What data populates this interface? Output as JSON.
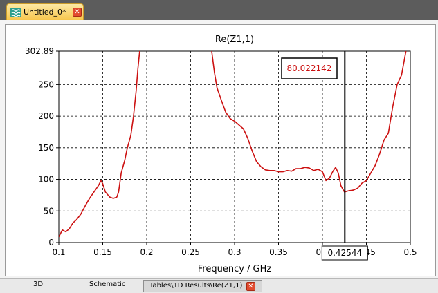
{
  "document_tab": {
    "title": "Untitled_0*",
    "icon": "wave-icon",
    "close_icon": "close-icon"
  },
  "bottom_tabs": [
    {
      "label": "3D"
    },
    {
      "label": "Schematic"
    },
    {
      "label": "Tables\\1D Results\\Re(Z1,1)",
      "active": true
    }
  ],
  "colors": {
    "curve": "#cc1111",
    "marker_value": "#cc1111",
    "grid": "#000000"
  },
  "marker": {
    "value_label": "80.022142",
    "x_label": "0.42544",
    "x": 0.42544,
    "y": 80.022142
  },
  "chart_data": {
    "type": "line",
    "title": "Re(Z1,1)",
    "xlabel": "Frequency / GHz",
    "ylabel": "",
    "xlim": [
      0.1,
      0.5
    ],
    "ylim": [
      0,
      302.89
    ],
    "xticks": [
      "0.1",
      "0.15",
      "0.2",
      "0.25",
      "0.3",
      "0.35",
      "0.4",
      "0.45",
      "0.5"
    ],
    "yticks": [
      "0",
      "50",
      "100",
      "150",
      "200",
      "250",
      "302.89"
    ],
    "grid": true,
    "series": [
      {
        "segments": [
          [
            [
              0.1,
              9
            ],
            [
              0.104,
              20
            ],
            [
              0.108,
              17
            ],
            [
              0.112,
              22
            ],
            [
              0.116,
              31
            ],
            [
              0.12,
              36
            ],
            [
              0.125,
              45
            ],
            [
              0.13,
              58
            ],
            [
              0.135,
              70
            ],
            [
              0.14,
              80
            ],
            [
              0.145,
              90
            ],
            [
              0.148,
              98
            ],
            [
              0.15,
              93
            ],
            [
              0.153,
              80
            ],
            [
              0.158,
              72
            ],
            [
              0.162,
              70
            ],
            [
              0.166,
              72
            ],
            [
              0.168,
              80
            ],
            [
              0.171,
              110
            ],
            [
              0.175,
              130
            ],
            [
              0.178,
              150
            ],
            [
              0.182,
              170
            ],
            [
              0.185,
              200
            ],
            [
              0.188,
              240
            ],
            [
              0.19,
              275
            ],
            [
              0.192,
              302.89
            ]
          ],
          [
            [
              0.274,
              302.89
            ],
            [
              0.277,
              270
            ],
            [
              0.28,
              245
            ],
            [
              0.285,
              225
            ],
            [
              0.29,
              206
            ],
            [
              0.295,
              196
            ],
            [
              0.3,
              192
            ],
            [
              0.305,
              186
            ],
            [
              0.31,
              180
            ],
            [
              0.315,
              165
            ],
            [
              0.32,
              145
            ],
            [
              0.325,
              128
            ],
            [
              0.33,
              120
            ],
            [
              0.335,
              115
            ],
            [
              0.34,
              114
            ],
            [
              0.345,
              114
            ],
            [
              0.35,
              112
            ],
            [
              0.355,
              112
            ],
            [
              0.36,
              114
            ],
            [
              0.365,
              113
            ],
            [
              0.37,
              117
            ],
            [
              0.375,
              117
            ],
            [
              0.38,
              119
            ],
            [
              0.385,
              118
            ],
            [
              0.39,
              114
            ],
            [
              0.395,
              116
            ],
            [
              0.4,
              112
            ],
            [
              0.404,
              98
            ],
            [
              0.408,
              102
            ],
            [
              0.412,
              113
            ],
            [
              0.415,
              119
            ],
            [
              0.418,
              110
            ],
            [
              0.421,
              90
            ],
            [
              0.425,
              80.02
            ],
            [
              0.43,
              82
            ],
            [
              0.435,
              83
            ],
            [
              0.44,
              86
            ],
            [
              0.445,
              94
            ],
            [
              0.45,
              98
            ],
            [
              0.455,
              110
            ],
            [
              0.46,
              122
            ],
            [
              0.465,
              140
            ],
            [
              0.47,
              162
            ],
            [
              0.475,
              173
            ],
            [
              0.48,
              215
            ],
            [
              0.485,
              250
            ],
            [
              0.49,
              265
            ],
            [
              0.495,
              302.89
            ]
          ]
        ]
      }
    ]
  }
}
